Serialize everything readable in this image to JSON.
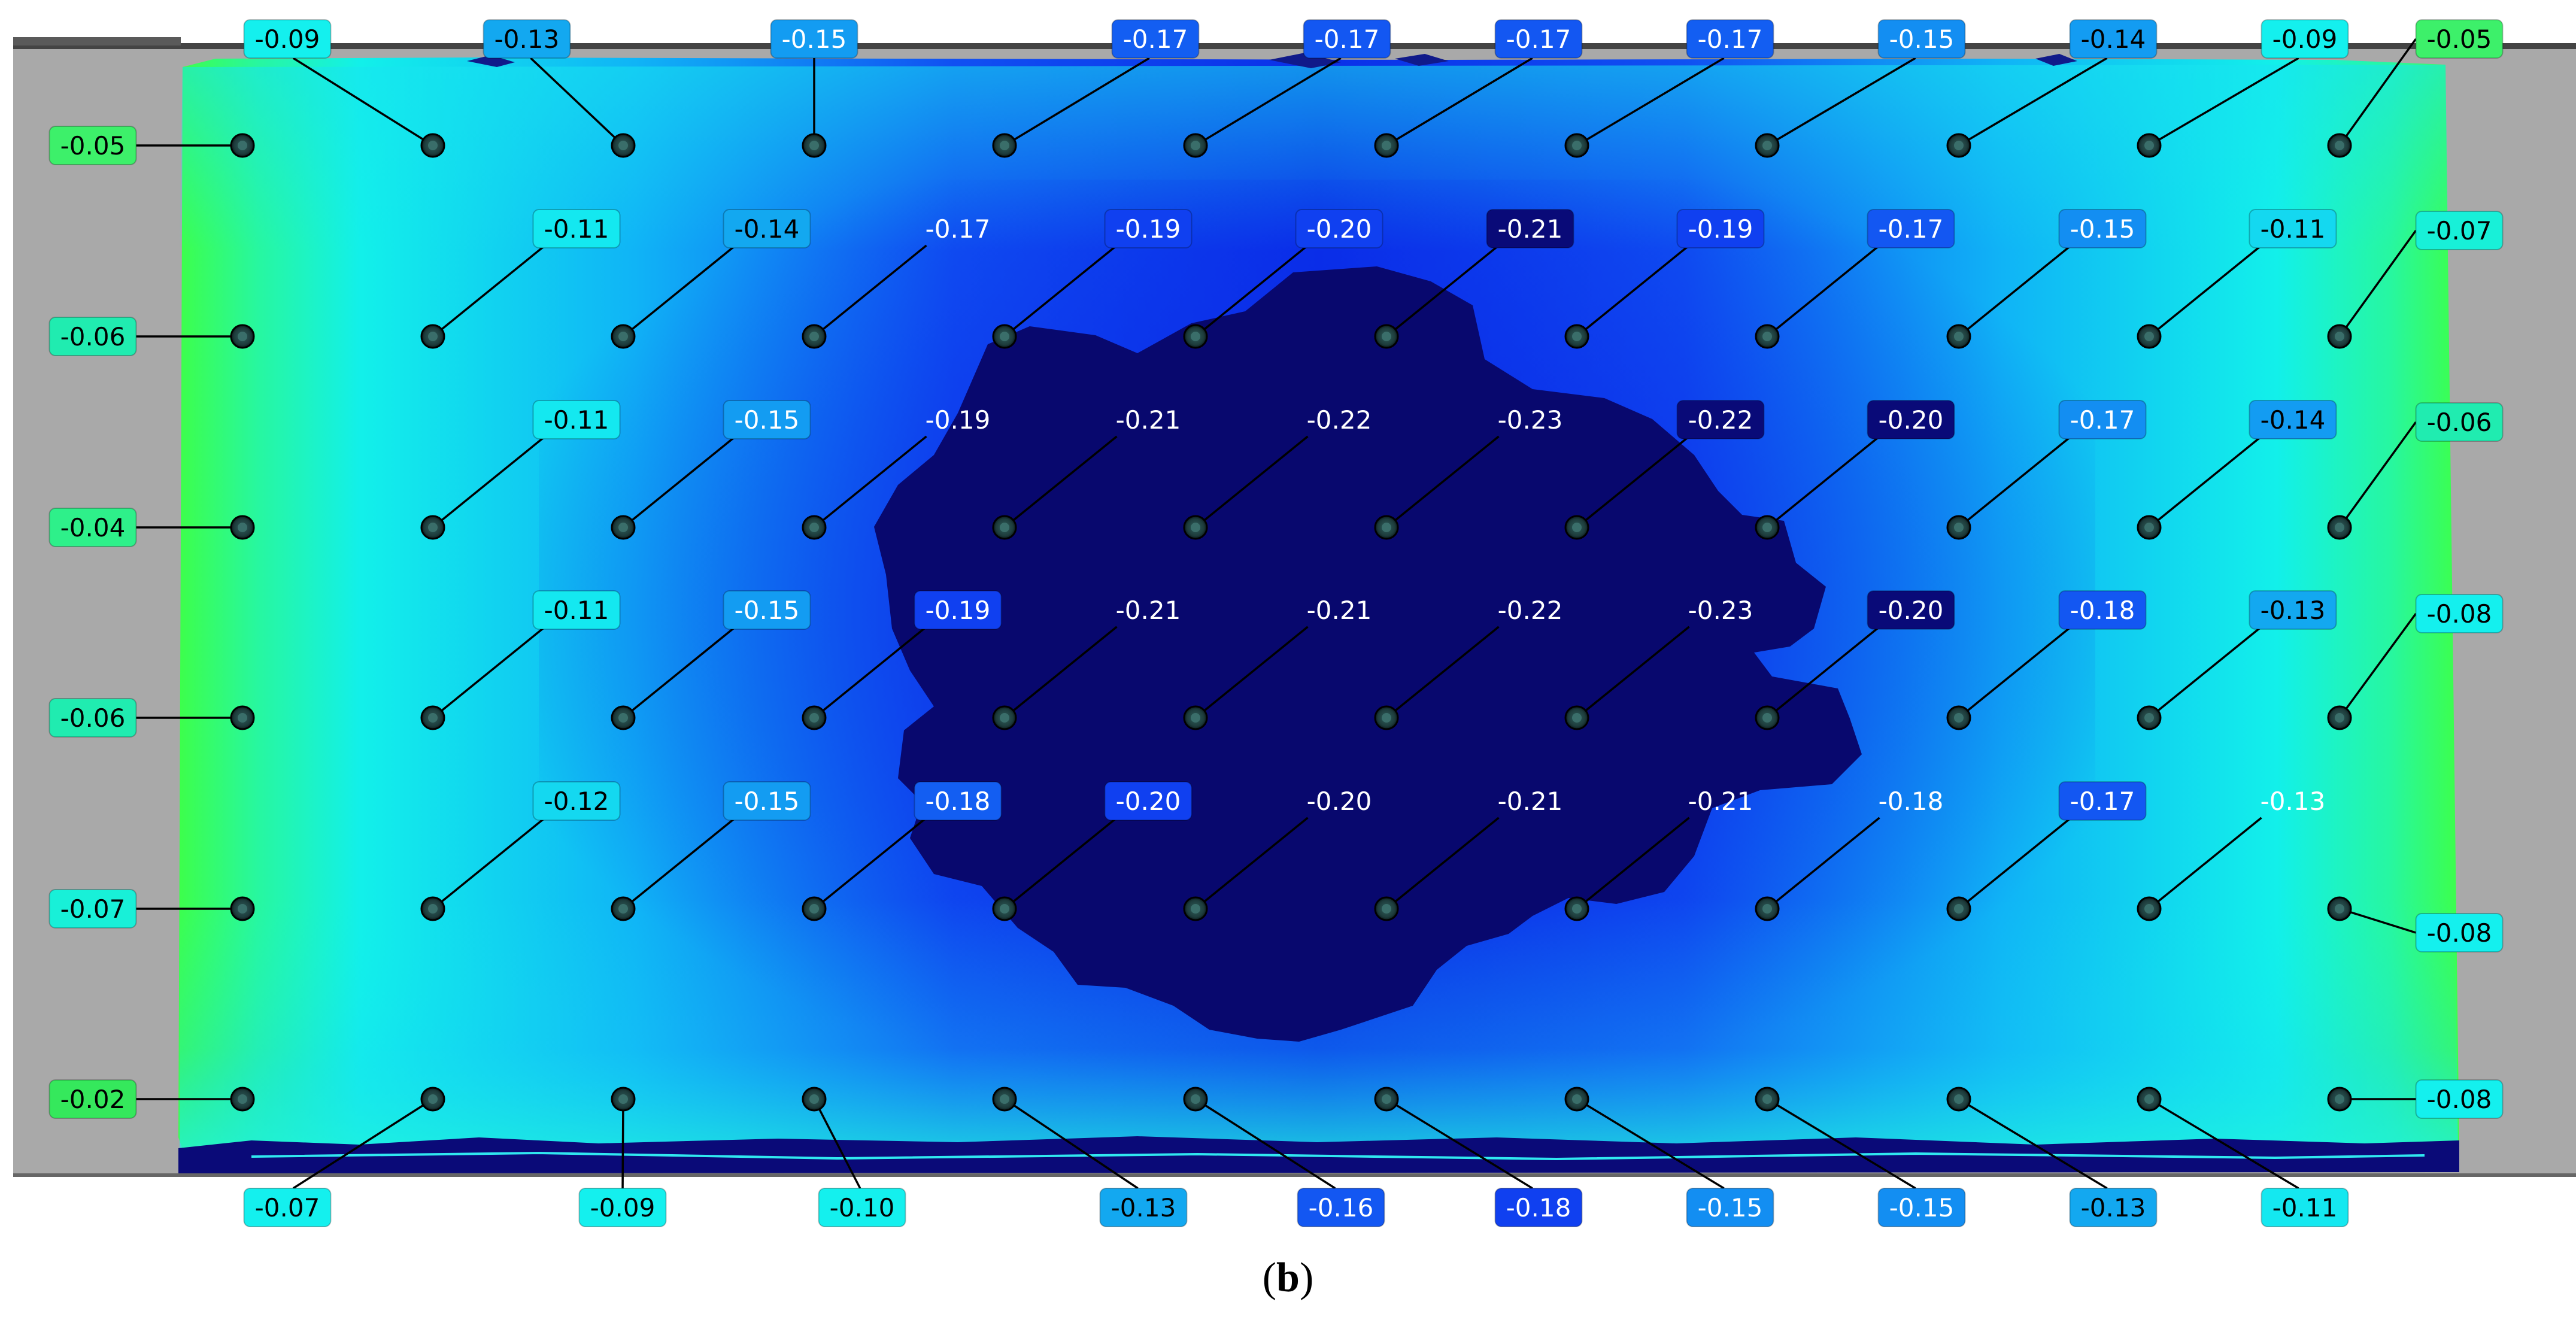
{
  "caption": {
    "open": "(",
    "letter": "b",
    "close": ")"
  },
  "colors": {
    "background": "#ffffff",
    "frame": "#a9a9a9",
    "frame_edge": "#555555",
    "plate_edge_green": "#3cff5a",
    "plate_cyan": "#13f2ea",
    "plate_mid": "#1870ff",
    "plate_blue": "#0533ee",
    "plate_dark": "#08086e",
    "point_fill": "#2a4a4a",
    "leader_line": "#000000"
  },
  "measurement_points": [
    [
      {
        "r": 0,
        "c": 0,
        "value": "-0.05",
        "label_bg": "#3df06a",
        "text": "#000000"
      },
      {
        "r": 0,
        "c": 1,
        "value": "-0.09",
        "label_bg": "#14f0ee",
        "text": "#000000"
      },
      {
        "r": 0,
        "c": 2,
        "value": "-0.13",
        "label_bg": "#13a8f0",
        "text": "#000000"
      },
      {
        "r": 0,
        "c": 3,
        "value": "-0.15",
        "label_bg": "#139cf2",
        "text": "#ffffff"
      },
      {
        "r": 0,
        "c": 4,
        "value": "-0.17",
        "label_bg": "#135ef2",
        "text": "#ffffff"
      },
      {
        "r": 0,
        "c": 5,
        "value": "-0.17",
        "label_bg": "#1357f2",
        "text": "#ffffff"
      },
      {
        "r": 0,
        "c": 6,
        "value": "-0.17",
        "label_bg": "#1357f2",
        "text": "#ffffff"
      },
      {
        "r": 0,
        "c": 7,
        "value": "-0.17",
        "label_bg": "#135ef2",
        "text": "#ffffff"
      },
      {
        "r": 0,
        "c": 8,
        "value": "-0.15",
        "label_bg": "#138ef2",
        "text": "#ffffff"
      },
      {
        "r": 0,
        "c": 9,
        "value": "-0.14",
        "label_bg": "#139cf2",
        "text": "#000000"
      },
      {
        "r": 0,
        "c": 10,
        "value": "-0.09",
        "label_bg": "#14f0ee",
        "text": "#000000"
      },
      {
        "r": 0,
        "c": 11,
        "value": "-0.05",
        "label_bg": "#3df06a",
        "text": "#000000"
      }
    ],
    [
      {
        "r": 1,
        "c": 0,
        "value": "-0.06",
        "label_bg": "#20ecb0",
        "text": "#000000"
      },
      {
        "r": 1,
        "c": 1,
        "value": "-0.11",
        "label_bg": "#14e8f0",
        "text": "#000000"
      },
      {
        "r": 1,
        "c": 2,
        "value": "-0.14",
        "label_bg": "#13a8f0",
        "text": "#000000"
      },
      {
        "r": 1,
        "c": 3,
        "value": "-0.17",
        "label_bg": "",
        "text": "#ffffff"
      },
      {
        "r": 1,
        "c": 4,
        "value": "-0.19",
        "label_bg": "#1040f0",
        "text": "#ffffff"
      },
      {
        "r": 1,
        "c": 5,
        "value": "-0.20",
        "label_bg": "#1040f0",
        "text": "#ffffff"
      },
      {
        "r": 1,
        "c": 6,
        "value": "-0.21",
        "label_bg": "#090a78",
        "text": "#ffffff"
      },
      {
        "r": 1,
        "c": 7,
        "value": "-0.19",
        "label_bg": "#1040f0",
        "text": "#ffffff"
      },
      {
        "r": 1,
        "c": 8,
        "value": "-0.17",
        "label_bg": "#1357f2",
        "text": "#ffffff"
      },
      {
        "r": 1,
        "c": 9,
        "value": "-0.15",
        "label_bg": "#138ef2",
        "text": "#ffffff"
      },
      {
        "r": 1,
        "c": 10,
        "value": "-0.11",
        "label_bg": "#14d8f0",
        "text": "#000000"
      },
      {
        "r": 1,
        "c": 11,
        "value": "-0.07",
        "label_bg": "#18f0d8",
        "text": "#000000"
      }
    ],
    [
      {
        "r": 2,
        "c": 0,
        "value": "-0.04",
        "label_bg": "#2ef08a",
        "text": "#000000"
      },
      {
        "r": 2,
        "c": 1,
        "value": "-0.11",
        "label_bg": "#14e8f0",
        "text": "#000000"
      },
      {
        "r": 2,
        "c": 2,
        "value": "-0.15",
        "label_bg": "#139cf2",
        "text": "#ffffff"
      },
      {
        "r": 2,
        "c": 3,
        "value": "-0.19",
        "label_bg": "",
        "text": "#ffffff"
      },
      {
        "r": 2,
        "c": 4,
        "value": "-0.21",
        "label_bg": "",
        "text": "#ffffff"
      },
      {
        "r": 2,
        "c": 5,
        "value": "-0.22",
        "label_bg": "",
        "text": "#ffffff"
      },
      {
        "r": 2,
        "c": 6,
        "value": "-0.23",
        "label_bg": "",
        "text": "#ffffff"
      },
      {
        "r": 2,
        "c": 7,
        "value": "-0.22",
        "label_bg": "#090a78",
        "text": "#ffffff"
      },
      {
        "r": 2,
        "c": 8,
        "value": "-0.20",
        "label_bg": "#090a78",
        "text": "#ffffff"
      },
      {
        "r": 2,
        "c": 9,
        "value": "-0.17",
        "label_bg": "#138ef2",
        "text": "#ffffff"
      },
      {
        "r": 2,
        "c": 10,
        "value": "-0.14",
        "label_bg": "#139cf2",
        "text": "#000000"
      },
      {
        "r": 2,
        "c": 11,
        "value": "-0.06",
        "label_bg": "#20ecb0",
        "text": "#000000"
      }
    ],
    [
      {
        "r": 3,
        "c": 0,
        "value": "-0.06",
        "label_bg": "#20ecb0",
        "text": "#000000"
      },
      {
        "r": 3,
        "c": 1,
        "value": "-0.11",
        "label_bg": "#14e8f0",
        "text": "#000000"
      },
      {
        "r": 3,
        "c": 2,
        "value": "-0.15",
        "label_bg": "#139cf2",
        "text": "#ffffff"
      },
      {
        "r": 3,
        "c": 3,
        "value": "-0.19",
        "label_bg": "#1040f0",
        "text": "#ffffff"
      },
      {
        "r": 3,
        "c": 4,
        "value": "-0.21",
        "label_bg": "",
        "text": "#ffffff"
      },
      {
        "r": 3,
        "c": 5,
        "value": "-0.21",
        "label_bg": "",
        "text": "#ffffff"
      },
      {
        "r": 3,
        "c": 6,
        "value": "-0.22",
        "label_bg": "",
        "text": "#ffffff"
      },
      {
        "r": 3,
        "c": 7,
        "value": "-0.23",
        "label_bg": "",
        "text": "#ffffff"
      },
      {
        "r": 3,
        "c": 8,
        "value": "-0.20",
        "label_bg": "#090a78",
        "text": "#ffffff"
      },
      {
        "r": 3,
        "c": 9,
        "value": "-0.18",
        "label_bg": "#1357f2",
        "text": "#ffffff"
      },
      {
        "r": 3,
        "c": 10,
        "value": "-0.13",
        "label_bg": "#13a8f0",
        "text": "#000000"
      },
      {
        "r": 3,
        "c": 11,
        "value": "-0.08",
        "label_bg": "#14f0ee",
        "text": "#000000"
      }
    ],
    [
      {
        "r": 4,
        "c": 0,
        "value": "-0.07",
        "label_bg": "#18f0d8",
        "text": "#000000"
      },
      {
        "r": 4,
        "c": 1,
        "value": "-0.12",
        "label_bg": "#14d8f0",
        "text": "#000000"
      },
      {
        "r": 4,
        "c": 2,
        "value": "-0.15",
        "label_bg": "#139cf2",
        "text": "#ffffff"
      },
      {
        "r": 4,
        "c": 3,
        "value": "-0.18",
        "label_bg": "#135ef2",
        "text": "#ffffff"
      },
      {
        "r": 4,
        "c": 4,
        "value": "-0.20",
        "label_bg": "#1040f0",
        "text": "#ffffff"
      },
      {
        "r": 4,
        "c": 5,
        "value": "-0.20",
        "label_bg": "",
        "text": "#ffffff"
      },
      {
        "r": 4,
        "c": 6,
        "value": "-0.21",
        "label_bg": "",
        "text": "#ffffff"
      },
      {
        "r": 4,
        "c": 7,
        "value": "-0.21",
        "label_bg": "",
        "text": "#ffffff"
      },
      {
        "r": 4,
        "c": 8,
        "value": "-0.18",
        "label_bg": "",
        "text": "#ffffff"
      },
      {
        "r": 4,
        "c": 9,
        "value": "-0.17",
        "label_bg": "#1357f2",
        "text": "#ffffff"
      },
      {
        "r": 4,
        "c": 10,
        "value": "-0.13",
        "label_bg": "",
        "text": "#ffffff"
      },
      {
        "r": 4,
        "c": 11,
        "value": "-0.08",
        "label_bg": "#14f0ee",
        "text": "#000000"
      }
    ],
    [
      {
        "r": 5,
        "c": 0,
        "value": "-0.02",
        "label_bg": "#35e85c",
        "text": "#000000"
      },
      {
        "r": 5,
        "c": 1,
        "value": "-0.07",
        "label_bg": "#14f0ee",
        "text": "#000000"
      },
      {
        "r": 5,
        "c": 2,
        "value": "-0.09",
        "label_bg": "#14f0ee",
        "text": "#000000"
      },
      {
        "r": 5,
        "c": 3,
        "value": "-0.10",
        "label_bg": "#14f0ee",
        "text": "#000000"
      },
      {
        "r": 5,
        "c": 4,
        "value": "-0.13",
        "label_bg": "#13a8f0",
        "text": "#000000"
      },
      {
        "r": 5,
        "c": 5,
        "value": "-0.16",
        "label_bg": "#1357f2",
        "text": "#ffffff"
      },
      {
        "r": 5,
        "c": 6,
        "value": "-0.18",
        "label_bg": "#1040f0",
        "text": "#ffffff"
      },
      {
        "r": 5,
        "c": 7,
        "value": "-0.15",
        "label_bg": "#138ef2",
        "text": "#ffffff"
      },
      {
        "r": 5,
        "c": 8,
        "value": "-0.15",
        "label_bg": "#138ef2",
        "text": "#ffffff"
      },
      {
        "r": 5,
        "c": 9,
        "value": "-0.13",
        "label_bg": "#13a8f0",
        "text": "#000000"
      },
      {
        "r": 5,
        "c": 10,
        "value": "-0.11",
        "label_bg": "#14e8f0",
        "text": "#000000"
      },
      {
        "r": 5,
        "c": 11,
        "value": "-0.08",
        "label_bg": "#14f0ee",
        "text": "#000000"
      }
    ]
  ]
}
